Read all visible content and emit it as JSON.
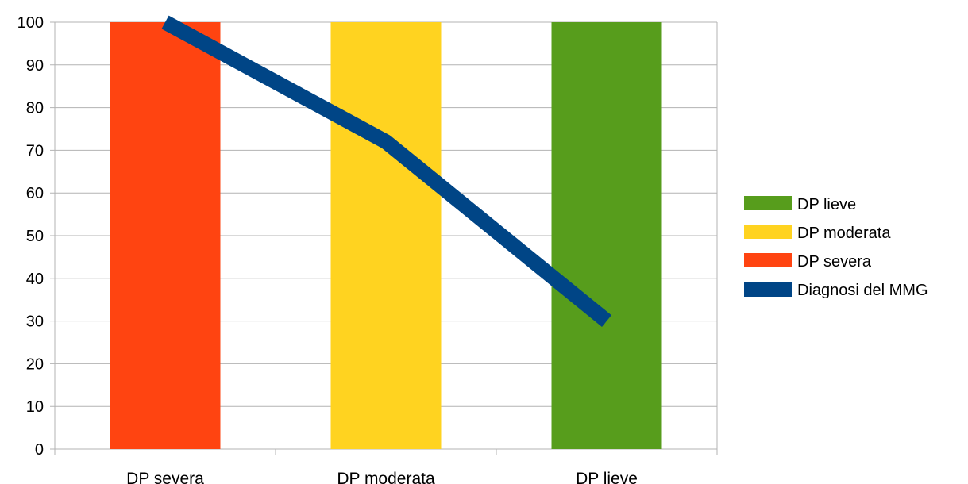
{
  "chart_data": {
    "type": "bar",
    "categories": [
      "DP severa",
      "DP moderata",
      "DP lieve"
    ],
    "series": [
      {
        "name": "DP severa",
        "type": "bar",
        "values": [
          100,
          null,
          null
        ],
        "color": "#ff4411"
      },
      {
        "name": "DP moderata",
        "type": "bar",
        "values": [
          null,
          100,
          null
        ],
        "color": "#ffd320"
      },
      {
        "name": "DP lieve",
        "type": "bar",
        "values": [
          null,
          null,
          100
        ],
        "color": "#579d1c"
      },
      {
        "name": "Diagnosi del MMG",
        "type": "line",
        "values": [
          100,
          72,
          30
        ],
        "color": "#004586"
      }
    ],
    "title": "",
    "xlabel": "",
    "ylabel": "",
    "ylim": [
      0,
      100
    ],
    "yticks": [
      0,
      10,
      20,
      30,
      40,
      50,
      60,
      70,
      80,
      90,
      100
    ],
    "grid": true,
    "legend": {
      "placement": "right",
      "entries": [
        "DP lieve",
        "DP moderata",
        "DP severa",
        "Diagnosi del MMG"
      ]
    }
  }
}
